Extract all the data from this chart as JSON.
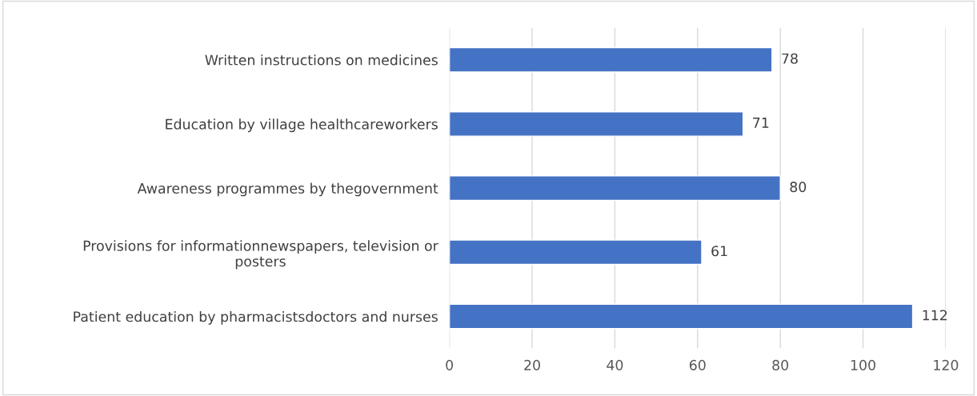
{
  "chart_data": {
    "type": "bar",
    "orientation": "horizontal",
    "categories": [
      "Written instructions on medicines",
      "Education by village healthcareworkers",
      "Awareness programmes by thegovernment",
      "Provisions for informationnewspapers, television or\nposters",
      "Patient education by pharmacistsdoctors and nurses"
    ],
    "values": [
      78,
      71,
      80,
      61,
      112
    ],
    "color": "#4472c4",
    "xlim": [
      0,
      120
    ],
    "xticks": [
      0,
      20,
      40,
      60,
      80,
      100,
      120
    ],
    "grid": "x",
    "data_labels": true,
    "legend": false
  }
}
